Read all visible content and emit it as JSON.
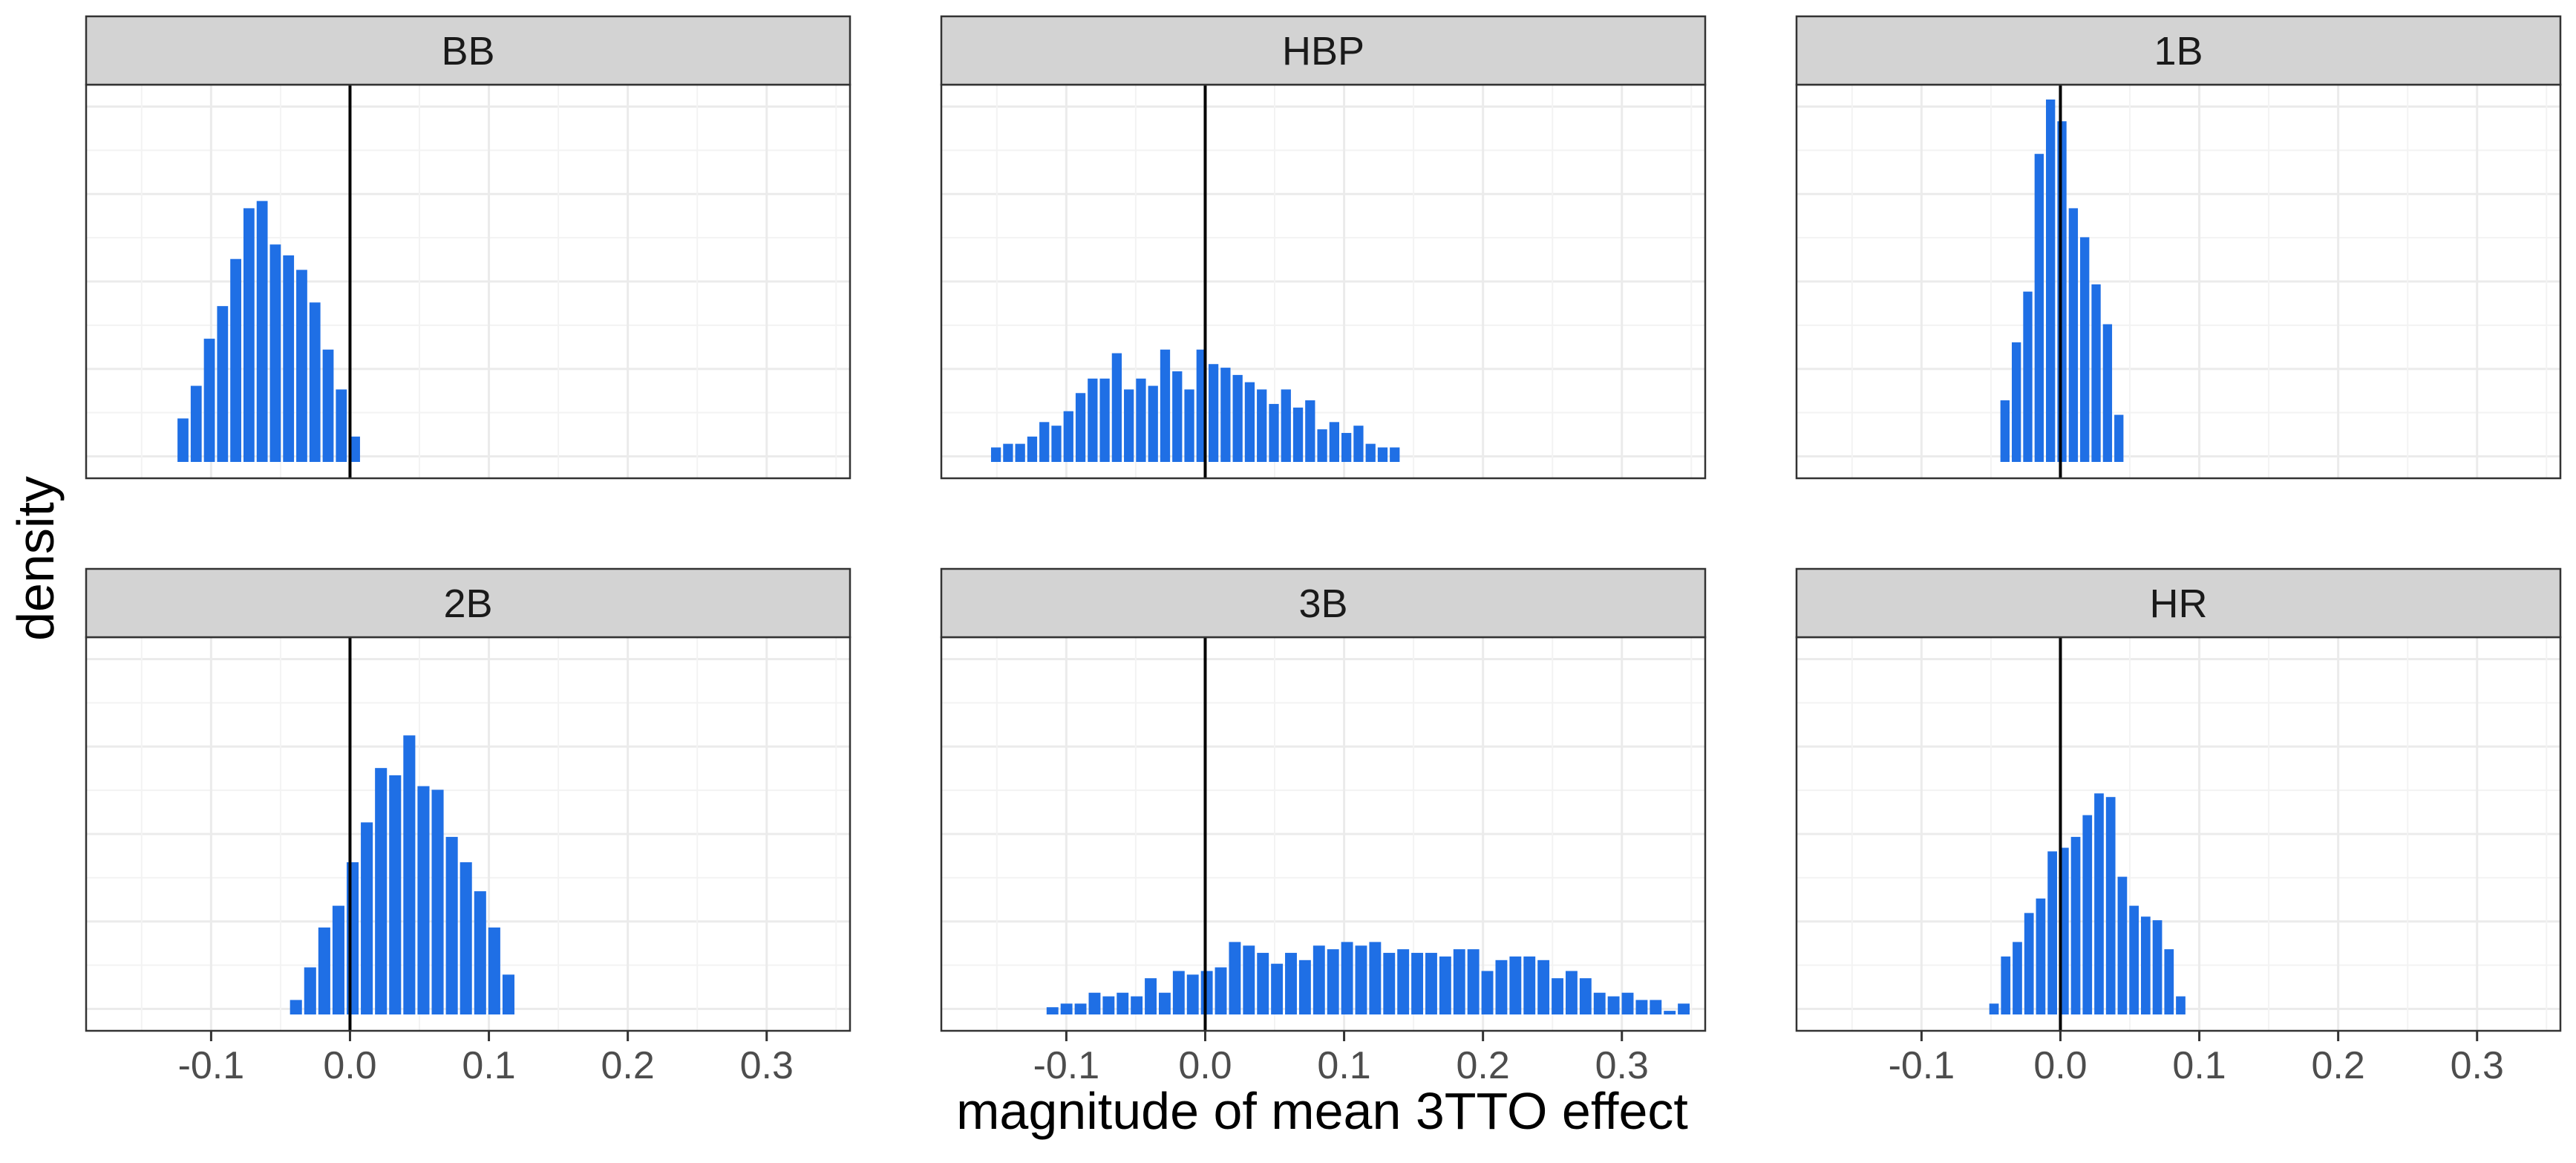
{
  "chart_data": {
    "type": "bar",
    "xlabel": "magnitude of mean 3TTO effect",
    "ylabel": "density",
    "xlim": [
      -0.19,
      0.36
    ],
    "x_ticks": [
      -0.1,
      0.0,
      0.1,
      0.2,
      0.3
    ],
    "x_tick_labels": [
      "-0.1",
      "0.0",
      "0.1",
      "0.2",
      "0.3"
    ],
    "reference_line_x": 0.0,
    "grid": true,
    "bar_color": "#1f6fe5",
    "panels": [
      {
        "title": "BB",
        "x_start": -0.125,
        "bin_width": 0.0095,
        "values": [
          0.12,
          0.21,
          0.34,
          0.43,
          0.56,
          0.7,
          0.72,
          0.6,
          0.57,
          0.53,
          0.44,
          0.31,
          0.2,
          0.07
        ]
      },
      {
        "title": "HBP",
        "x_start": -0.155,
        "bin_width": 0.0087,
        "values": [
          0.04,
          0.05,
          0.05,
          0.07,
          0.11,
          0.1,
          0.14,
          0.19,
          0.23,
          0.23,
          0.3,
          0.2,
          0.23,
          0.21,
          0.31,
          0.25,
          0.2,
          0.31,
          0.27,
          0.26,
          0.24,
          0.22,
          0.2,
          0.16,
          0.2,
          0.15,
          0.17,
          0.09,
          0.11,
          0.08,
          0.1,
          0.05,
          0.04,
          0.04
        ]
      },
      {
        "title": "1B",
        "x_start": -0.044,
        "bin_width": 0.0082,
        "values": [
          0.17,
          0.33,
          0.47,
          0.85,
          1.0,
          0.94,
          0.7,
          0.62,
          0.49,
          0.38,
          0.13
        ]
      },
      {
        "title": "2B",
        "x_start": -0.044,
        "bin_width": 0.0102,
        "values": [
          0.04,
          0.13,
          0.24,
          0.3,
          0.42,
          0.53,
          0.68,
          0.66,
          0.77,
          0.63,
          0.62,
          0.49,
          0.42,
          0.34,
          0.24,
          0.11
        ]
      },
      {
        "title": "3B",
        "x_start": -0.115,
        "bin_width": 0.0101,
        "values": [
          0.02,
          0.03,
          0.03,
          0.06,
          0.05,
          0.06,
          0.05,
          0.1,
          0.06,
          0.12,
          0.11,
          0.12,
          0.13,
          0.2,
          0.19,
          0.17,
          0.14,
          0.17,
          0.15,
          0.19,
          0.18,
          0.2,
          0.19,
          0.2,
          0.17,
          0.18,
          0.17,
          0.17,
          0.16,
          0.18,
          0.18,
          0.12,
          0.15,
          0.16,
          0.16,
          0.15,
          0.1,
          0.12,
          0.1,
          0.06,
          0.05,
          0.06,
          0.04,
          0.04,
          0.01,
          0.03
        ]
      },
      {
        "title": "HR",
        "x_start": -0.052,
        "bin_width": 0.0084,
        "values": [
          0.03,
          0.16,
          0.2,
          0.28,
          0.32,
          0.45,
          0.46,
          0.49,
          0.55,
          0.61,
          0.6,
          0.38,
          0.3,
          0.27,
          0.26,
          0.18,
          0.05
        ]
      }
    ]
  }
}
